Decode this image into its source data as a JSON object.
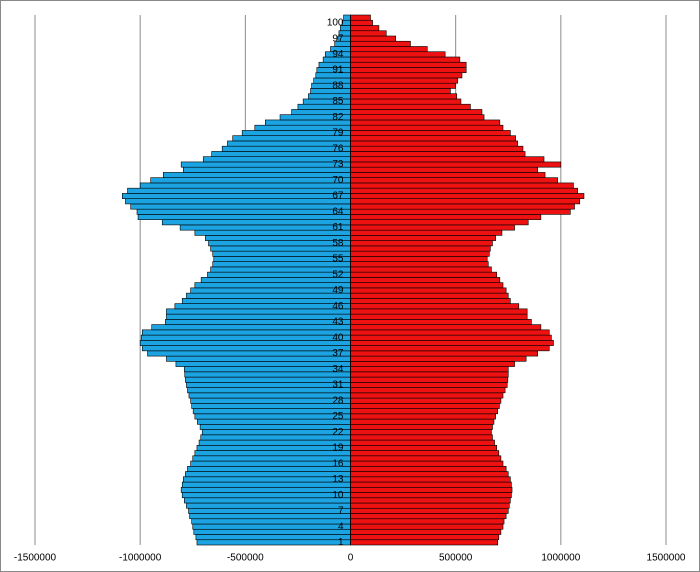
{
  "chart_data": {
    "type": "bar",
    "orientation": "horizontal",
    "stacked": "diverging",
    "grid": true,
    "categories": [
      "1",
      null,
      null,
      "4",
      null,
      null,
      "7",
      null,
      null,
      "10",
      null,
      null,
      "13",
      null,
      null,
      "16",
      null,
      null,
      "19",
      null,
      null,
      "22",
      null,
      null,
      "25",
      null,
      null,
      "28",
      null,
      null,
      "31",
      null,
      null,
      "34",
      null,
      null,
      "37",
      null,
      null,
      "40",
      null,
      null,
      "43",
      null,
      null,
      "46",
      null,
      null,
      "49",
      null,
      null,
      "52",
      null,
      null,
      "55",
      null,
      null,
      "58",
      null,
      null,
      "61",
      null,
      null,
      "64",
      null,
      null,
      "67",
      null,
      null,
      "70",
      null,
      null,
      "73",
      null,
      null,
      "76",
      null,
      null,
      "79",
      null,
      null,
      "82",
      null,
      null,
      "85",
      null,
      null,
      "88",
      null,
      null,
      "91",
      null,
      null,
      "94",
      null,
      null,
      "97",
      null,
      null,
      "100",
      null
    ],
    "xlim": [
      -1500000,
      1500000
    ],
    "xticks": [
      -1500000,
      -1000000,
      -500000,
      0,
      500000,
      1000000,
      1500000
    ],
    "series": [
      {
        "color": "#1ca3e2",
        "values": [
          -730000,
          -735000,
          -745000,
          -750000,
          -755000,
          -765000,
          -770000,
          -780000,
          -790000,
          -800000,
          -805000,
          -800000,
          -795000,
          -785000,
          -775000,
          -760000,
          -750000,
          -740000,
          -730000,
          -720000,
          -712000,
          -705000,
          -715000,
          -728000,
          -740000,
          -748000,
          -755000,
          -760000,
          -768000,
          -775000,
          -780000,
          -785000,
          -788000,
          -790000,
          -830000,
          -875000,
          -965000,
          -990000,
          -1000000,
          -995000,
          -990000,
          -945000,
          -880000,
          -875000,
          -875000,
          -835000,
          -800000,
          -780000,
          -760000,
          -740000,
          -710000,
          -680000,
          -665000,
          -655000,
          -650000,
          -655000,
          -665000,
          -675000,
          -690000,
          -740000,
          -810000,
          -895000,
          -1010000,
          -1015000,
          -1045000,
          -1070000,
          -1085000,
          -1060000,
          -1000000,
          -950000,
          -890000,
          -795000,
          -805000,
          -700000,
          -660000,
          -610000,
          -585000,
          -560000,
          -515000,
          -455000,
          -405000,
          -335000,
          -280000,
          -250000,
          -225000,
          -200000,
          -190000,
          -185000,
          -175000,
          -165000,
          -160000,
          -150000,
          -130000,
          -120000,
          -95000,
          -75000,
          -60000,
          -55000,
          -48000,
          -40000,
          -33000
        ]
      },
      {
        "color": "#ee1111",
        "values": [
          700000,
          705000,
          715000,
          725000,
          730000,
          740000,
          750000,
          755000,
          760000,
          765000,
          768000,
          765000,
          760000,
          750000,
          740000,
          725000,
          715000,
          705000,
          695000,
          685000,
          675000,
          670000,
          675000,
          682000,
          690000,
          700000,
          708000,
          715000,
          725000,
          735000,
          745000,
          748000,
          750000,
          750000,
          780000,
          835000,
          890000,
          945000,
          965000,
          955000,
          945000,
          905000,
          860000,
          840000,
          840000,
          800000,
          760000,
          750000,
          740000,
          725000,
          710000,
          695000,
          670000,
          655000,
          650000,
          660000,
          665000,
          675000,
          690000,
          720000,
          780000,
          845000,
          905000,
          1045000,
          1065000,
          1090000,
          1110000,
          1080000,
          1060000,
          985000,
          925000,
          890000,
          1000000,
          920000,
          830000,
          820000,
          795000,
          785000,
          760000,
          725000,
          710000,
          635000,
          625000,
          570000,
          525000,
          505000,
          475000,
          500000,
          510000,
          530000,
          550000,
          550000,
          520000,
          450000,
          365000,
          285000,
          215000,
          170000,
          135000,
          105000,
          95000
        ]
      }
    ]
  }
}
